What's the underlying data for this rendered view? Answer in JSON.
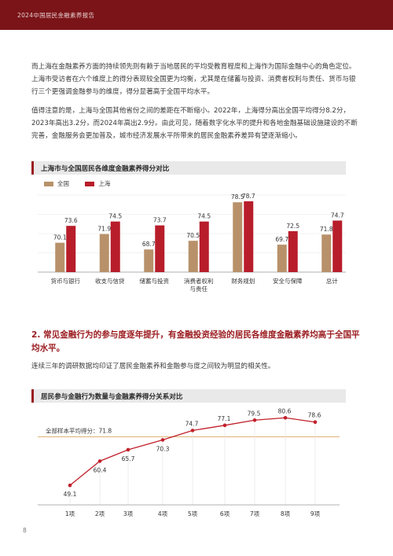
{
  "header": {
    "report_title": "2024中国居民金融素养报告"
  },
  "body": {
    "para1": "而上海在金融素养方面的持续领先则有赖于当地居民的平均受教育程度和上海作为国际金融中心的角色定位。上海市受访者在六个维度上的得分表现较全国更为均衡，尤其是在储蓄与投资、消费者权利与责任、货币与银行三个更强调金融参与的维度，得分显著高于全国平均水平。",
    "para2": "值得注意的是，上海与全国其他省份之间的差距在不断缩小。2022年，上海得分高出全国平均得分8.2分，2023年高出3.2分，而2024年高出2.9分。由此可见，随着数字化水平的提升和各地金融基础设施建设的不断完善，金融服务会更加普及，城市经济发展水平所带来的居民金融素养差异有望逐渐缩小。",
    "section_heading": "2. 常见金融行为的参与度逐年提升，有金融投资经验的居民各维度金融素养均高于全国平均水平。",
    "para3": "连续三年的调研数据均印证了居民金融素养和金融参与度之间较为明显的相关性。"
  },
  "page_number": "8",
  "colors": {
    "national": "#b8916a",
    "shanghai": "#b81d2a",
    "line": "#c2202b",
    "avg": "#d9a15a"
  },
  "chart_data": [
    {
      "type": "bar",
      "title": "上海市与全国居民各维度金融素养得分对比",
      "categories": [
        "货币与银行",
        "收支与信贷",
        "储蓄与投资",
        "消费者权利与责任",
        "财务规划",
        "安全与保障",
        "总计"
      ],
      "category_lines": [
        [
          "货币与银行"
        ],
        [
          "收支与信贷"
        ],
        [
          "储蓄与投资"
        ],
        [
          "消费者权利",
          "与责任"
        ],
        [
          "财务规划"
        ],
        [
          "安全与保障"
        ],
        [
          "总计"
        ]
      ],
      "series": [
        {
          "name": "全国",
          "values": [
            70.1,
            71.9,
            68.7,
            70.5,
            78.5,
            69.7,
            71.8
          ]
        },
        {
          "name": "上海",
          "values": [
            73.6,
            74.5,
            73.7,
            74.5,
            78.7,
            72.5,
            74.7
          ]
        }
      ],
      "ylim": [
        64,
        80
      ],
      "legend": "top-left"
    },
    {
      "type": "line",
      "title": "居民参与金融行为数量与金融素养得分关系对比",
      "categories": [
        "1项",
        "2项",
        "3项",
        "4项",
        "5项",
        "6项",
        "7项",
        "8项",
        "9项"
      ],
      "values": [
        49.1,
        60.4,
        65.7,
        70.3,
        74.7,
        77.1,
        79.5,
        80.6,
        78.6
      ],
      "reference_line": {
        "label": "全部样本平均得分：71.8",
        "value": 71.8
      },
      "ylim": [
        40,
        84
      ]
    }
  ]
}
